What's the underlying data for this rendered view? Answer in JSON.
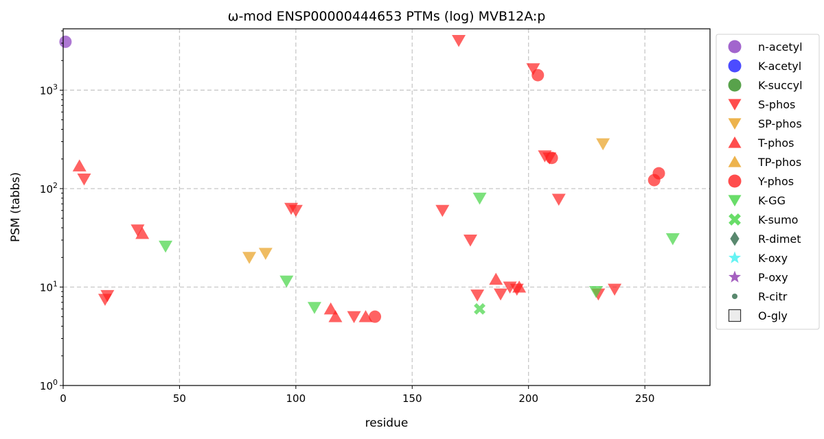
{
  "chart_data": {
    "type": "scatter",
    "title": "ω-mod ENSP00000444653 PTMs (log) MVB12A:p",
    "xlabel": "residue",
    "ylabel": "PSM (tabbs)",
    "xlim": [
      0,
      278
    ],
    "ylim": [
      1,
      4200
    ],
    "yscale": "log",
    "grid": true,
    "legend_position": "outside-right",
    "x_ticks": [
      "0",
      "50",
      "100",
      "150",
      "200",
      "250"
    ],
    "x_tick_values": [
      0,
      50,
      100,
      150,
      200,
      250
    ],
    "y_ticks": [
      {
        "value": 1,
        "base": "10",
        "exp": "0"
      },
      {
        "value": 10,
        "base": "10",
        "exp": "1"
      },
      {
        "value": 100,
        "base": "10",
        "exp": "2"
      },
      {
        "value": 1000,
        "base": "10",
        "exp": "3"
      }
    ],
    "series": [
      {
        "name": "n-acetyl",
        "marker": "circle",
        "color": "#8B3FC0",
        "points": [
          [
            1,
            3100
          ]
        ]
      },
      {
        "name": "K-acetyl",
        "marker": "circle",
        "color": "#1f1fff",
        "points": []
      },
      {
        "name": "K-succyl",
        "marker": "circle",
        "color": "#2e8b1e",
        "points": []
      },
      {
        "name": "S-phos",
        "marker": "triangle-down",
        "color": "#ff2020",
        "points": [
          [
            9,
            125
          ],
          [
            18,
            7.5
          ],
          [
            19,
            8.2
          ],
          [
            32,
            38
          ],
          [
            98,
            63
          ],
          [
            100,
            60
          ],
          [
            125,
            5
          ],
          [
            163,
            60
          ],
          [
            170,
            3200
          ],
          [
            175,
            30
          ],
          [
            178,
            8.3
          ],
          [
            188,
            8.5
          ],
          [
            192,
            10
          ],
          [
            195,
            9.5
          ],
          [
            202,
            1650
          ],
          [
            207,
            215
          ],
          [
            209,
            205
          ],
          [
            213,
            78
          ],
          [
            230,
            8.5
          ],
          [
            237,
            9.5
          ]
        ]
      },
      {
        "name": "SP-phos",
        "marker": "triangle-down",
        "color": "#e8a020",
        "points": [
          [
            80,
            20
          ],
          [
            87,
            22
          ],
          [
            232,
            285
          ]
        ]
      },
      {
        "name": "T-phos",
        "marker": "triangle-up",
        "color": "#ff2020",
        "points": [
          [
            7,
            170
          ],
          [
            34,
            35
          ],
          [
            115,
            6
          ],
          [
            117,
            5
          ],
          [
            130,
            5
          ],
          [
            186,
            12
          ],
          [
            196,
            10
          ]
        ]
      },
      {
        "name": "TP-phos",
        "marker": "triangle-up",
        "color": "#e8a020",
        "points": []
      },
      {
        "name": "Y-phos",
        "marker": "circle",
        "color": "#ff2020",
        "points": [
          [
            134,
            5
          ],
          [
            204,
            1420
          ],
          [
            210,
            205
          ],
          [
            254,
            122
          ],
          [
            256,
            143
          ]
        ]
      },
      {
        "name": "K-GG",
        "marker": "triangle-down",
        "color": "#44d444",
        "points": [
          [
            44,
            26
          ],
          [
            96,
            11.5
          ],
          [
            108,
            6.2
          ],
          [
            179,
            80
          ],
          [
            229,
            9
          ],
          [
            262,
            31
          ]
        ]
      },
      {
        "name": "K-sumo",
        "marker": "x",
        "color": "#44d444",
        "points": [
          [
            179,
            6
          ]
        ]
      },
      {
        "name": "R-dimet",
        "marker": "diamond",
        "color": "#2f6a4a",
        "points": []
      },
      {
        "name": "K-oxy",
        "marker": "star",
        "color": "#40f0f0",
        "points": []
      },
      {
        "name": "P-oxy",
        "marker": "star",
        "color": "#8e3ab0",
        "points": []
      },
      {
        "name": "R-citr",
        "marker": "dot",
        "color": "#2f6a4a",
        "points": []
      },
      {
        "name": "O-gly",
        "marker": "square",
        "color": "#d0d0d0",
        "points": []
      }
    ]
  }
}
